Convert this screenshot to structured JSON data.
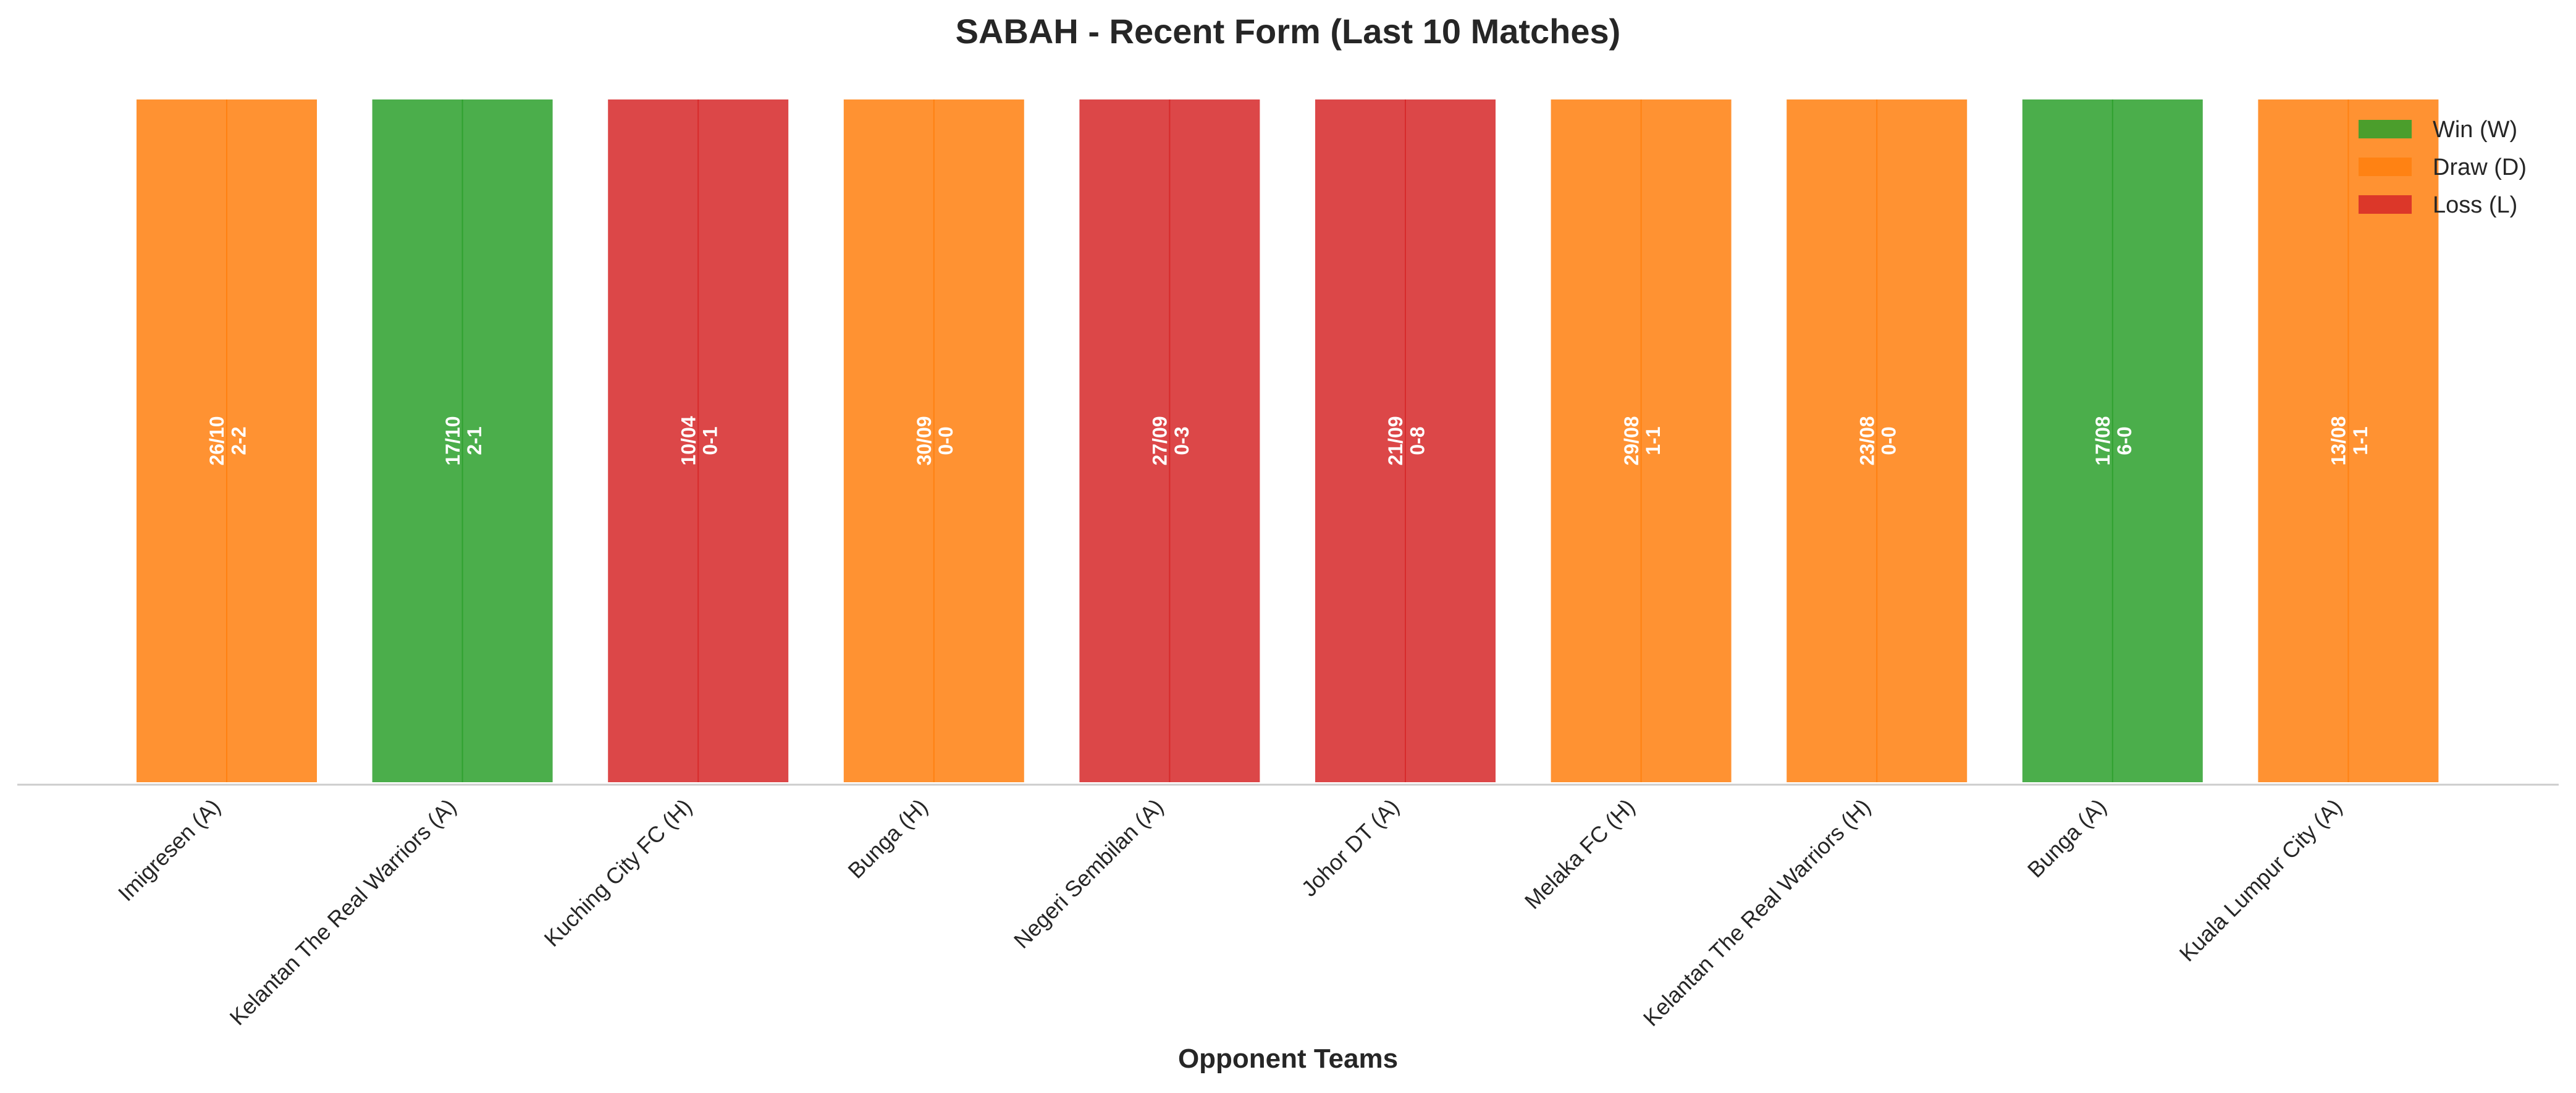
{
  "chart_data": {
    "type": "bar",
    "title": "SABAH - Recent Form (Last 10 Matches)",
    "xlabel": "Opponent Teams",
    "ylabel": "",
    "grid": false,
    "legend_placement": "top-right",
    "colors": {
      "W": "#2ca02c",
      "D": "#ff7f0e",
      "L": "#d62728"
    },
    "legend": [
      {
        "key": "W",
        "label": "Win (W)"
      },
      {
        "key": "D",
        "label": "Draw (D)"
      },
      {
        "key": "L",
        "label": "Loss (L)"
      }
    ],
    "categories": [
      "Imigresen (A)",
      "Kelantan The Real Warriors (A)",
      "Kuching City FC (H)",
      "Bunga (H)",
      "Negeri Sembilan (A)",
      "Johor DT (A)",
      "Melaka FC (H)",
      "Kelantan The Real Warriors (H)",
      "Bunga (A)",
      "Kuala Lumpur City (A)"
    ],
    "values": [
      1,
      1,
      1,
      1,
      1,
      1,
      1,
      1,
      1,
      1
    ],
    "results": [
      "D",
      "W",
      "L",
      "D",
      "L",
      "L",
      "D",
      "D",
      "W",
      "D"
    ],
    "dates": [
      "26/10",
      "17/10",
      "10/04",
      "30/09",
      "27/09",
      "21/09",
      "29/08",
      "23/08",
      "17/08",
      "13/08"
    ],
    "scores": [
      "2-2",
      "2-1",
      "0-1",
      "0-0",
      "0-3",
      "0-8",
      "1-1",
      "0-0",
      "6-0",
      "1-1"
    ]
  }
}
